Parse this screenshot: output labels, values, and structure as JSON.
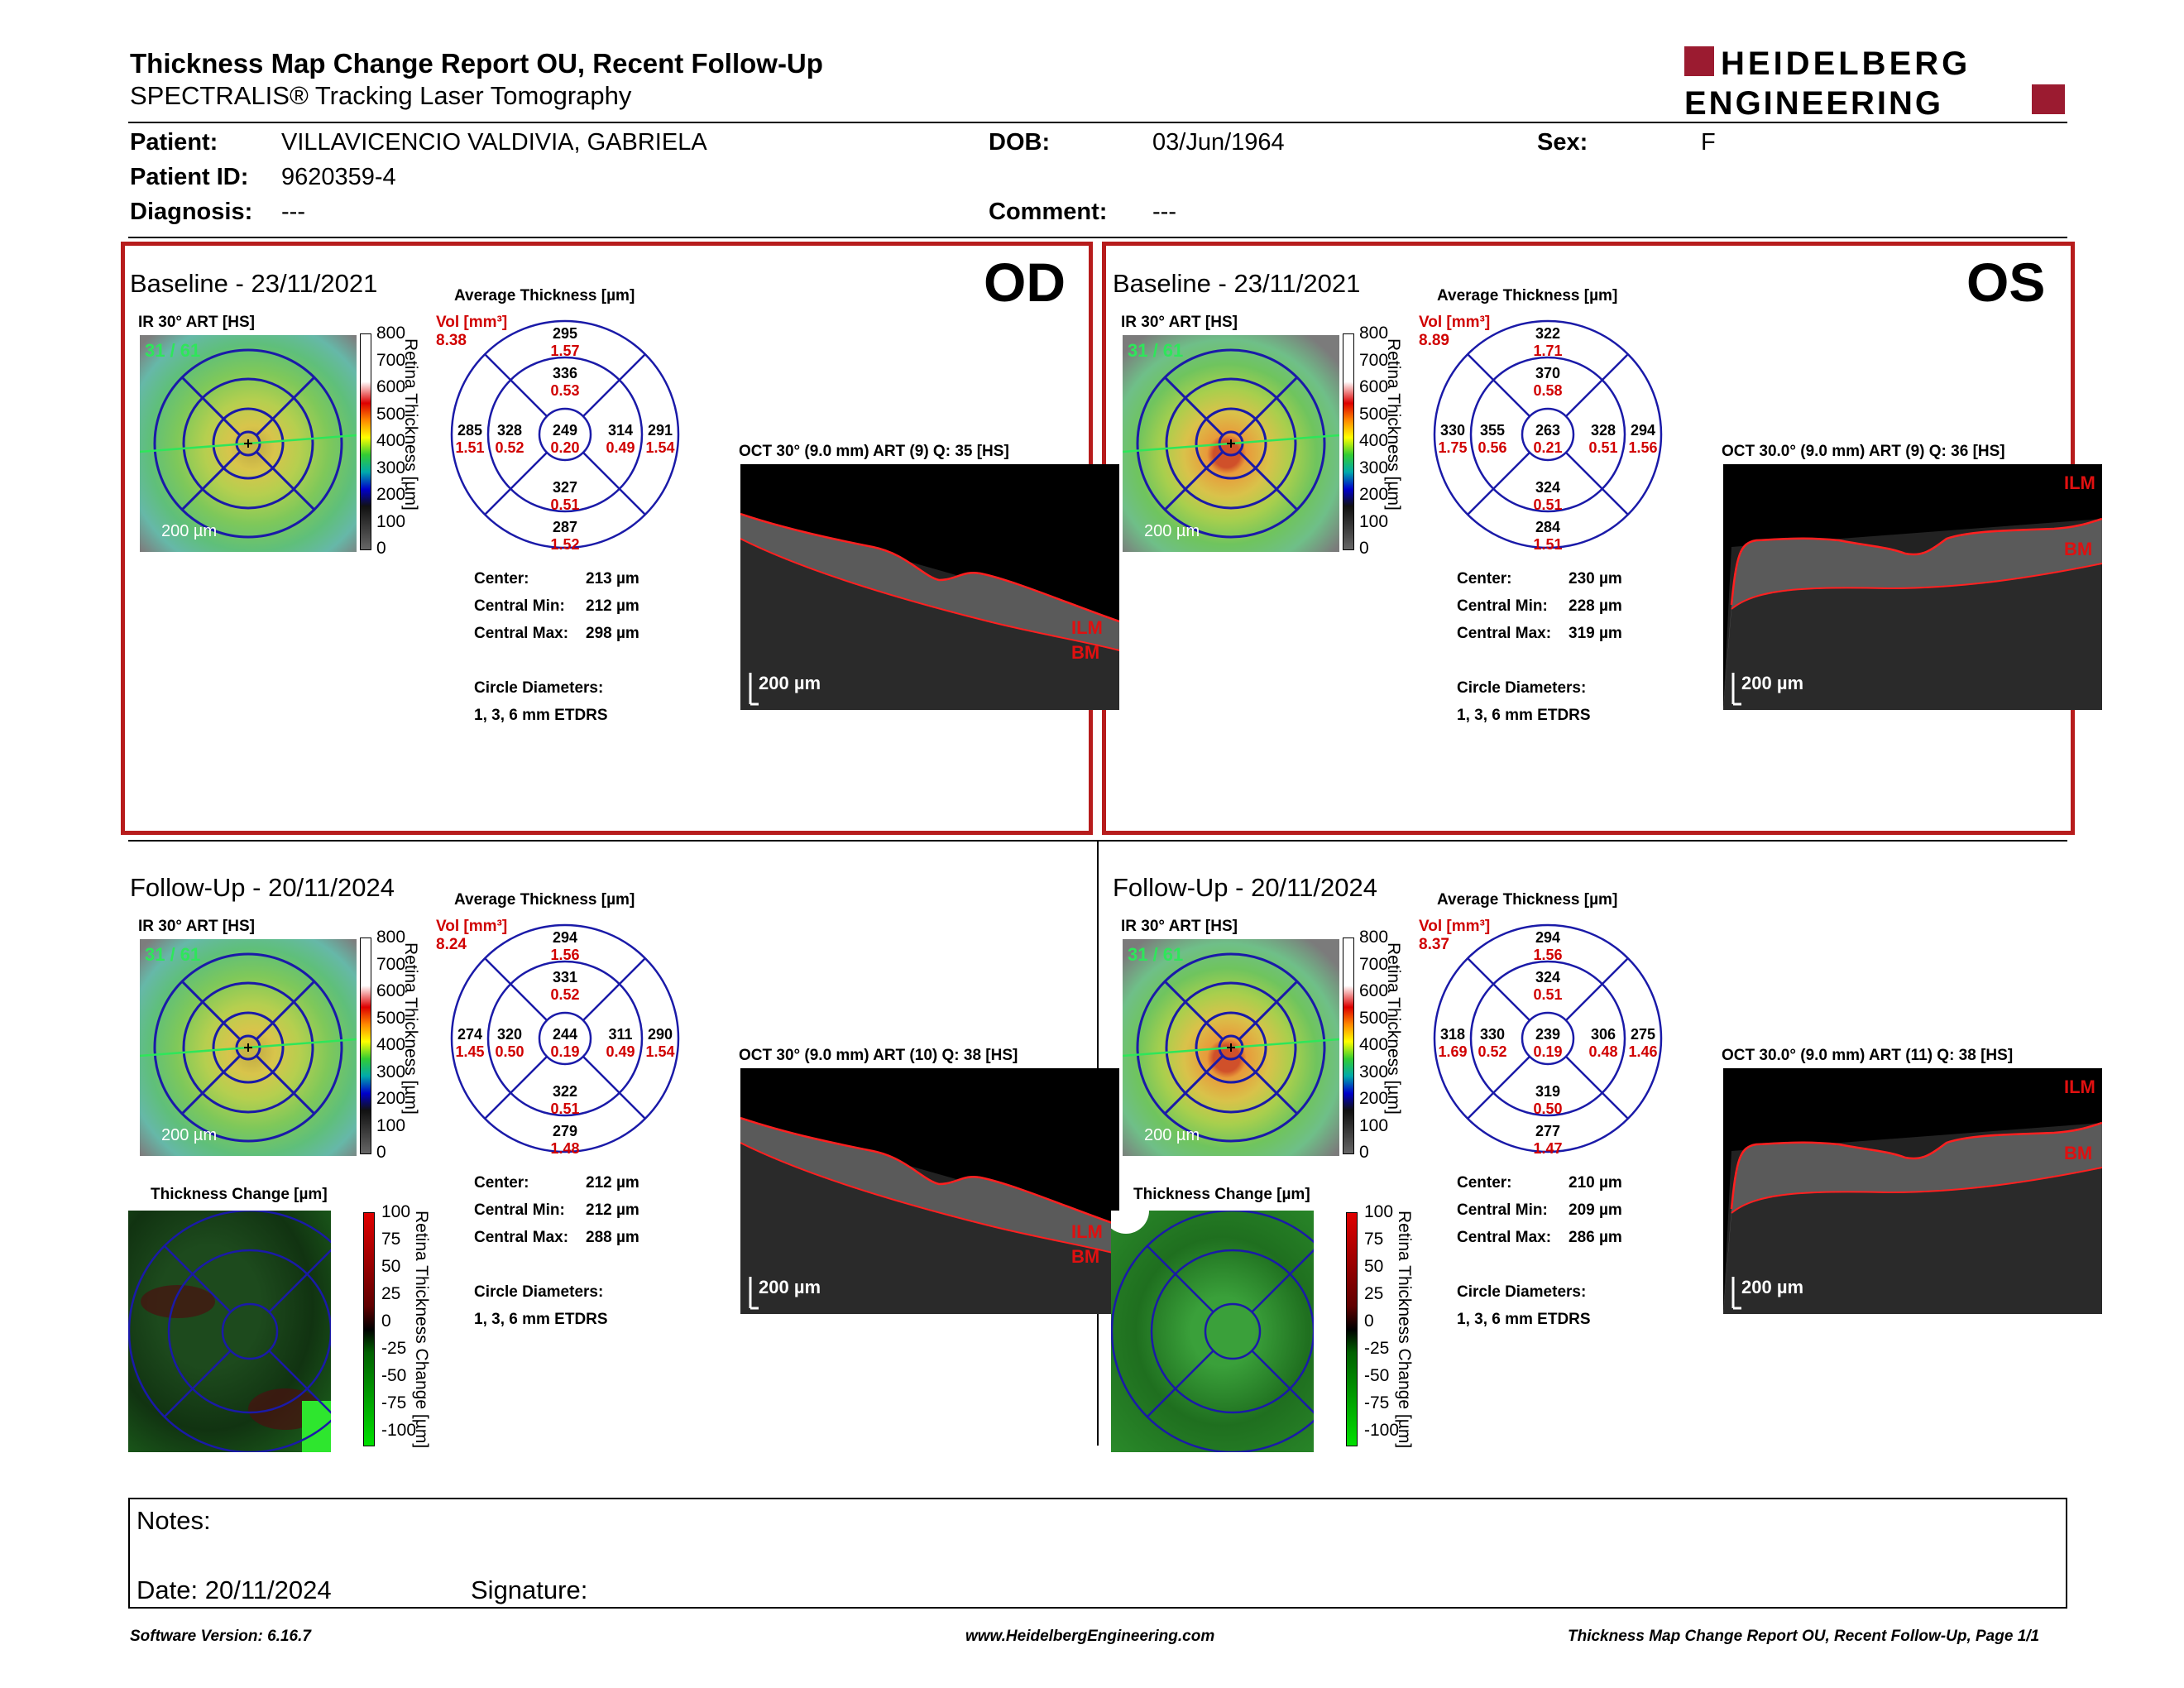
{
  "report": {
    "title": "Thickness Map Change Report OU, Recent Follow-Up",
    "subtitle": "SPECTRALIS® Tracking Laser Tomography",
    "logo_line1": "HEIDELBERG",
    "logo_line2": "ENGINEERING"
  },
  "patient": {
    "name_label": "Patient:",
    "name": "VILLAVICENCIO VALDIVIA, GABRIELA",
    "id_label": "Patient ID:",
    "id": "9620359-4",
    "diagnosis_label": "Diagnosis:",
    "diagnosis": "---",
    "dob_label": "DOB:",
    "dob": "03/Jun/1964",
    "comment_label": "Comment:",
    "comment": "---",
    "sex_label": "Sex:",
    "sex": "F"
  },
  "common": {
    "avg_title": "Average Thickness [µm]",
    "vol_label": "Vol [mm³]",
    "ruler": "200 µm",
    "ir_scale": "200 µm",
    "thick_axis": "Retina Thickness [µm]",
    "center_label": "Center:",
    "cmin_label": "Central Min:",
    "cmax_label": "Central Max:",
    "circ_label": "Circle Diameters:",
    "circ_val": "1, 3, 6 mm ETDRS",
    "change_title": "Thickness Change [µm]",
    "change_axis": "Retina Thickness Change [µm]",
    "ilm": "ILM",
    "bm": "BM",
    "scan_num": "31 / 61",
    "cbar_ticks": [
      "800",
      "700",
      "600",
      "500",
      "400",
      "300",
      "200",
      "100",
      "0"
    ],
    "chg_ticks": [
      "100",
      "75",
      "50",
      "25",
      "0",
      "-25",
      "-50",
      "-75",
      "-100"
    ]
  },
  "panels": {
    "od_base": {
      "title": "Baseline - 23/11/2021",
      "eye": "OD",
      "ir": "IR 30° ART [HS]",
      "vol": "8.38",
      "oct": "OCT 30° (9.0 mm) ART (9) Q: 35 [HS]",
      "center": "213 µm",
      "cmin": "212 µm",
      "cmax": "298 µm",
      "s": {
        "t": "295",
        "v": "1.57"
      },
      "is": {
        "t": "336",
        "v": "0.53"
      },
      "c": {
        "t": "249",
        "v": "0.20"
      },
      "ii": {
        "t": "327",
        "v": "0.51"
      },
      "i": {
        "t": "287",
        "v": "1.52"
      },
      "ot": {
        "t": "285",
        "v": "1.51"
      },
      "it": {
        "t": "328",
        "v": "0.52"
      },
      "in": {
        "t": "314",
        "v": "0.49"
      },
      "on": {
        "t": "291",
        "v": "1.54"
      }
    },
    "os_base": {
      "title": "Baseline - 23/11/2021",
      "eye": "OS",
      "ir": "IR 30° ART [HS]",
      "vol": "8.89",
      "oct": "OCT 30.0° (9.0 mm) ART (9) Q: 36 [HS]",
      "center": "230 µm",
      "cmin": "228 µm",
      "cmax": "319 µm",
      "s": {
        "t": "322",
        "v": "1.71"
      },
      "is": {
        "t": "370",
        "v": "0.58"
      },
      "c": {
        "t": "263",
        "v": "0.21"
      },
      "ii": {
        "t": "324",
        "v": "0.51"
      },
      "i": {
        "t": "284",
        "v": "1.51"
      },
      "ot": {
        "t": "330",
        "v": "1.75"
      },
      "it": {
        "t": "355",
        "v": "0.56"
      },
      "in": {
        "t": "328",
        "v": "0.51"
      },
      "on": {
        "t": "294",
        "v": "1.56"
      }
    },
    "od_fu": {
      "title": "Follow-Up - 20/11/2024",
      "ir": "IR 30° ART [HS]",
      "vol": "8.24",
      "oct": "OCT 30° (9.0 mm) ART (10) Q: 38 [HS]",
      "center": "212 µm",
      "cmin": "212 µm",
      "cmax": "288 µm",
      "s": {
        "t": "294",
        "v": "1.56"
      },
      "is": {
        "t": "331",
        "v": "0.52"
      },
      "c": {
        "t": "244",
        "v": "0.19"
      },
      "ii": {
        "t": "322",
        "v": "0.51"
      },
      "i": {
        "t": "279",
        "v": "1.48"
      },
      "ot": {
        "t": "274",
        "v": "1.45"
      },
      "it": {
        "t": "320",
        "v": "0.50"
      },
      "in": {
        "t": "311",
        "v": "0.49"
      },
      "on": {
        "t": "290",
        "v": "1.54"
      }
    },
    "os_fu": {
      "title": "Follow-Up - 20/11/2024",
      "ir": "IR 30° ART [HS]",
      "vol": "8.37",
      "oct": "OCT 30.0° (9.0 mm) ART (11) Q: 38 [HS]",
      "center": "210 µm",
      "cmin": "209 µm",
      "cmax": "286 µm",
      "s": {
        "t": "294",
        "v": "1.56"
      },
      "is": {
        "t": "324",
        "v": "0.51"
      },
      "c": {
        "t": "239",
        "v": "0.19"
      },
      "ii": {
        "t": "319",
        "v": "0.50"
      },
      "i": {
        "t": "277",
        "v": "1.47"
      },
      "ot": {
        "t": "318",
        "v": "1.69"
      },
      "it": {
        "t": "330",
        "v": "0.52"
      },
      "in": {
        "t": "306",
        "v": "0.48"
      },
      "on": {
        "t": "275",
        "v": "1.46"
      }
    }
  },
  "notes": {
    "label": "Notes:",
    "date_label": "Date:",
    "date": "20/11/2024",
    "signature_label": "Signature:"
  },
  "footer": {
    "left": "Software Version: 6.16.7",
    "center": "www.HeidelbergEngineering.com",
    "right": "Thickness Map Change Report OU, Recent Follow-Up, Page 1/1"
  },
  "colors": {
    "frame": "#b71c1c",
    "value": "#d00000",
    "grid": "#1a1aa8"
  }
}
